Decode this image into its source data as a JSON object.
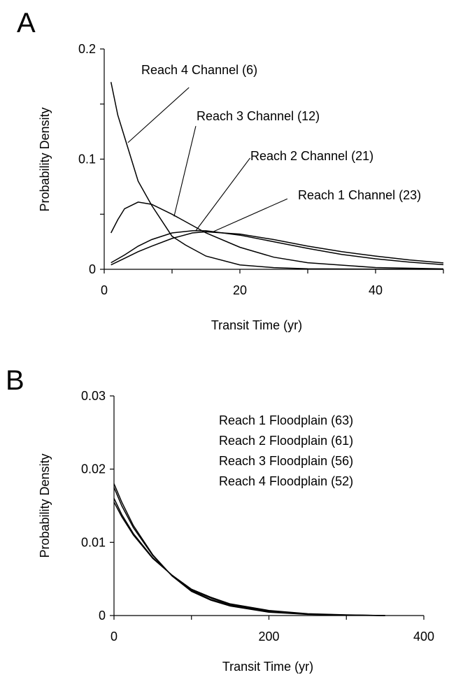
{
  "chart_data": [
    {
      "panel_label": "A",
      "type": "line",
      "xlabel": "Transit Time (yr)",
      "ylabel": "Probability Density",
      "xlim": [
        0,
        50
      ],
      "ylim": [
        0,
        0.2
      ],
      "x_ticks": [
        {
          "v": 0,
          "label": "0"
        },
        {
          "v": 20,
          "label": "20"
        },
        {
          "v": 40,
          "label": "40"
        }
      ],
      "x_minor_ticks": [
        10,
        30,
        50
      ],
      "y_ticks": [
        {
          "v": 0,
          "label": "0"
        },
        {
          "v": 0.1,
          "label": "0.1"
        },
        {
          "v": 0.2,
          "label": "0.2"
        }
      ],
      "y_minor_ticks": [
        0.05,
        0.15
      ],
      "grid": false,
      "series": [
        {
          "name": "Reach 4 Channel (6)",
          "x": [
            1,
            2,
            3,
            5,
            7,
            10,
            12,
            15,
            20,
            25,
            30,
            40,
            50
          ],
          "y": [
            0.17,
            0.14,
            0.12,
            0.08,
            0.058,
            0.03,
            0.022,
            0.012,
            0.004,
            0.0015,
            0.0005,
            0.0001,
            0
          ]
        },
        {
          "name": "Reach 3 Channel (12)",
          "x": [
            1,
            2,
            3,
            5,
            7,
            10,
            15,
            20,
            25,
            30,
            40,
            50
          ],
          "y": [
            0.033,
            0.045,
            0.055,
            0.061,
            0.059,
            0.05,
            0.033,
            0.02,
            0.011,
            0.006,
            0.0016,
            0.0004
          ]
        },
        {
          "name": "Reach 2 Channel (21)",
          "x": [
            1,
            3,
            5,
            7,
            10,
            13,
            15,
            20,
            25,
            30,
            35,
            40,
            45,
            50
          ],
          "y": [
            0.006,
            0.013,
            0.021,
            0.027,
            0.033,
            0.035,
            0.035,
            0.031,
            0.025,
            0.019,
            0.0135,
            0.0095,
            0.0065,
            0.0042
          ]
        },
        {
          "name": "Reach 1 Channel (23)",
          "x": [
            1,
            3,
            5,
            7,
            10,
            13,
            15,
            20,
            25,
            30,
            35,
            40,
            45,
            50
          ],
          "y": [
            0.004,
            0.01,
            0.016,
            0.021,
            0.028,
            0.033,
            0.034,
            0.032,
            0.027,
            0.021,
            0.016,
            0.012,
            0.0085,
            0.0058
          ]
        }
      ],
      "annotations": [
        {
          "text": "Reach 4 Channel (6)",
          "series": 0,
          "point": [
            3.5,
            0.115
          ],
          "end": [
            12.5,
            0.165
          ]
        },
        {
          "text": "Reach 3 Channel (12)",
          "series": 1,
          "point": [
            10.3,
            0.048
          ],
          "end": [
            13.5,
            0.13
          ]
        },
        {
          "text": "Reach 2 Channel (21)",
          "series": 2,
          "point": [
            13.5,
            0.035
          ],
          "end": [
            21.5,
            0.101
          ]
        },
        {
          "text": "Reach 1 Channel (23)",
          "series": 3,
          "point": [
            16,
            0.034
          ],
          "end": [
            27,
            0.064
          ]
        }
      ]
    },
    {
      "panel_label": "B",
      "type": "line",
      "xlabel": "Transit Time (yr)",
      "ylabel": "Probability Density",
      "xlim": [
        0,
        400
      ],
      "ylim": [
        0,
        0.03
      ],
      "x_ticks": [
        {
          "v": 0,
          "label": "0"
        },
        {
          "v": 200,
          "label": "200"
        },
        {
          "v": 400,
          "label": "400"
        }
      ],
      "x_minor_ticks": [
        100,
        300
      ],
      "y_ticks": [
        {
          "v": 0,
          "label": "0"
        },
        {
          "v": 0.01,
          "label": "0.01"
        },
        {
          "v": 0.02,
          "label": "0.02"
        },
        {
          "v": 0.03,
          "label": "0.03"
        }
      ],
      "y_minor_ticks": [],
      "grid": false,
      "series": [
        {
          "name": "Reach 1 Floodplain (63)",
          "x": [
            0,
            10,
            25,
            50,
            75,
            100,
            125,
            150,
            200,
            250,
            300,
            350
          ],
          "y": [
            0.0155,
            0.0135,
            0.011,
            0.0078,
            0.0055,
            0.0036,
            0.0025,
            0.0016,
            0.0007,
            0.00025,
            0.0001,
            0
          ]
        },
        {
          "name": "Reach 2 Floodplain (61)",
          "x": [
            0,
            10,
            25,
            50,
            75,
            100,
            125,
            150,
            200,
            250,
            300,
            350
          ],
          "y": [
            0.016,
            0.0138,
            0.0112,
            0.0079,
            0.0055,
            0.0035,
            0.0024,
            0.0015,
            0.0006,
            0.00022,
            8e-05,
            0
          ]
        },
        {
          "name": "Reach 3 Floodplain (56)",
          "x": [
            0,
            10,
            25,
            50,
            75,
            100,
            125,
            150,
            200,
            250,
            300,
            350
          ],
          "y": [
            0.0175,
            0.015,
            0.012,
            0.0082,
            0.0054,
            0.0034,
            0.0022,
            0.0014,
            0.0005,
            0.00018,
            6e-05,
            0
          ]
        },
        {
          "name": "Reach 4 Floodplain (52)",
          "x": [
            0,
            10,
            25,
            50,
            75,
            100,
            125,
            150,
            200,
            250,
            300,
            350
          ],
          "y": [
            0.018,
            0.0155,
            0.0123,
            0.0083,
            0.0054,
            0.0033,
            0.0021,
            0.0013,
            0.00045,
            0.00015,
            5e-05,
            0
          ]
        }
      ],
      "legend_text": [
        "Reach 1 Floodplain (63)",
        "Reach 2 Floodplain (61)",
        "Reach 3 Floodplain (56)",
        "Reach 4 Floodplain (52)"
      ]
    }
  ]
}
